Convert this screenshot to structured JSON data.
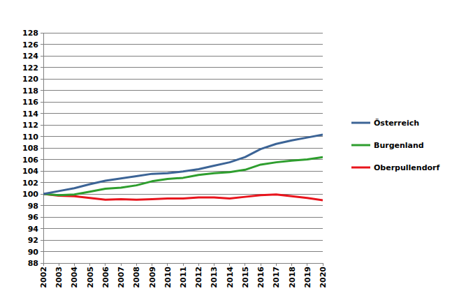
{
  "chart_data": {
    "type": "line",
    "x": [
      2002,
      2003,
      2004,
      2005,
      2006,
      2007,
      2008,
      2009,
      2010,
      2011,
      2012,
      2013,
      2014,
      2015,
      2016,
      2017,
      2018,
      2019,
      2020
    ],
    "xlim": [
      2002,
      2020
    ],
    "xticks": [
      2002,
      2003,
      2004,
      2005,
      2006,
      2007,
      2008,
      2009,
      2010,
      2011,
      2012,
      2013,
      2014,
      2015,
      2016,
      2017,
      2018,
      2019,
      2020
    ],
    "ylim": [
      88,
      128
    ],
    "yticks": [
      88,
      90,
      92,
      94,
      96,
      98,
      100,
      102,
      104,
      106,
      108,
      110,
      112,
      114,
      116,
      118,
      120,
      122,
      124,
      126,
      128
    ],
    "grid": true,
    "legend": "right",
    "series": [
      {
        "name": "Oberpullendorf",
        "color": "#e8141c",
        "values": [
          100,
          99.7,
          99.6,
          99.3,
          99.0,
          99.1,
          99.0,
          99.1,
          99.2,
          99.2,
          99.4,
          99.4,
          99.2,
          99.5,
          99.8,
          99.9,
          99.6,
          99.3,
          98.9
        ]
      },
      {
        "name": "Burgenland",
        "color": "#2e9e2e",
        "values": [
          100,
          99.8,
          99.9,
          100.4,
          100.9,
          101.1,
          101.5,
          102.2,
          102.6,
          102.8,
          103.3,
          103.6,
          103.8,
          104.2,
          105.1,
          105.5,
          105.8,
          106.0,
          106.4
        ]
      },
      {
        "name": "Österreich",
        "color": "#3c6496",
        "values": [
          100,
          100.5,
          101.0,
          101.7,
          102.3,
          102.7,
          103.1,
          103.5,
          103.6,
          103.9,
          104.3,
          104.9,
          105.5,
          106.4,
          107.8,
          108.7,
          109.3,
          109.8,
          110.3
        ]
      }
    ]
  }
}
